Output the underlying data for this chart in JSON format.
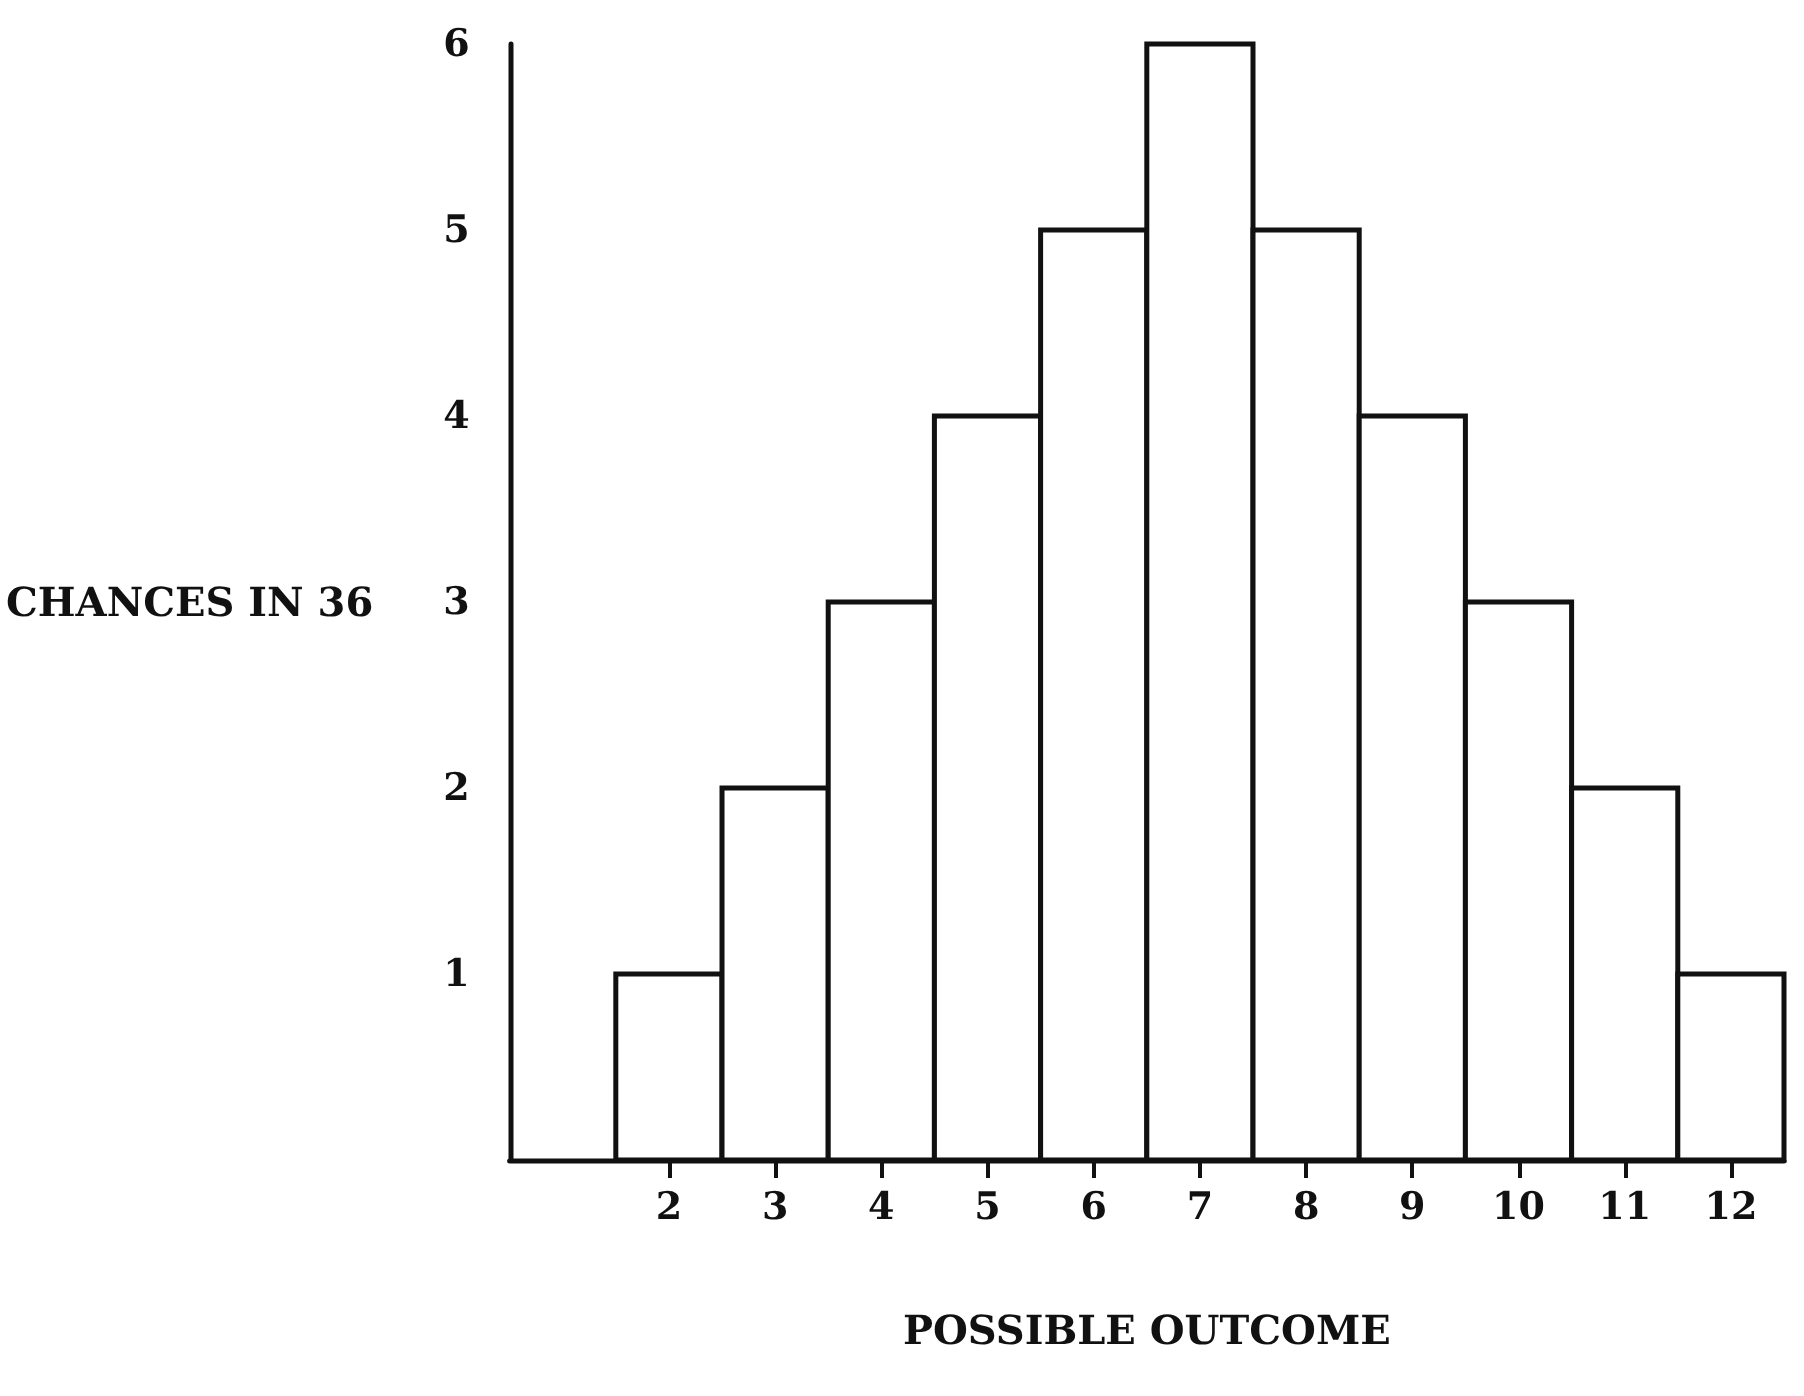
{
  "chart_data": {
    "type": "histogram",
    "xlabel": "POSSIBLE OUTCOME",
    "ylabel": "CHANCES IN 36",
    "bins": [
      1.5,
      2.5,
      3.5,
      4.5,
      5.5,
      6.5,
      7.5,
      8.5,
      9.5,
      10.5,
      11.5,
      12.5
    ],
    "values": [
      1,
      2,
      3,
      4,
      5,
      6,
      5,
      4,
      3,
      2,
      1
    ],
    "color": "#ffffff",
    "xlim": [
      0.5,
      12.5
    ],
    "xticks": [
      2,
      3,
      4,
      5,
      6,
      7,
      8,
      9,
      10,
      11,
      12
    ],
    "ylim": [
      0,
      6
    ],
    "yticks": [
      1,
      2,
      3,
      4,
      5,
      6
    ],
    "grid": false
  }
}
